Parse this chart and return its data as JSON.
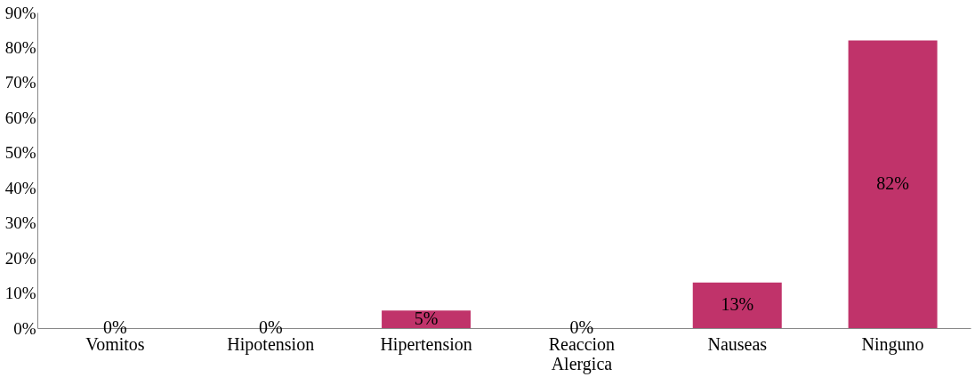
{
  "chart_data": {
    "type": "bar",
    "categories": [
      "Vomitos",
      "Hipotension",
      "Hipertension",
      "Reaccion Alergica",
      "Nauseas",
      "Ninguno"
    ],
    "values": [
      0,
      0,
      5,
      0,
      13,
      82
    ],
    "value_labels": [
      "0%",
      "0%",
      "5%",
      "0%",
      "13%",
      "82%"
    ],
    "color": "#c0336a",
    "ylim": [
      0,
      90
    ],
    "yticks": [
      {
        "value": 0,
        "label": "0%"
      },
      {
        "value": 10,
        "label": "10%"
      },
      {
        "value": 20,
        "label": "20%"
      },
      {
        "value": 30,
        "label": "30%"
      },
      {
        "value": 40,
        "label": "40%"
      },
      {
        "value": 50,
        "label": "50%"
      },
      {
        "value": 60,
        "label": "60%"
      },
      {
        "value": 70,
        "label": "70%"
      },
      {
        "value": 80,
        "label": "80%"
      },
      {
        "value": 90,
        "label": "90%"
      }
    ],
    "grid": false
  }
}
